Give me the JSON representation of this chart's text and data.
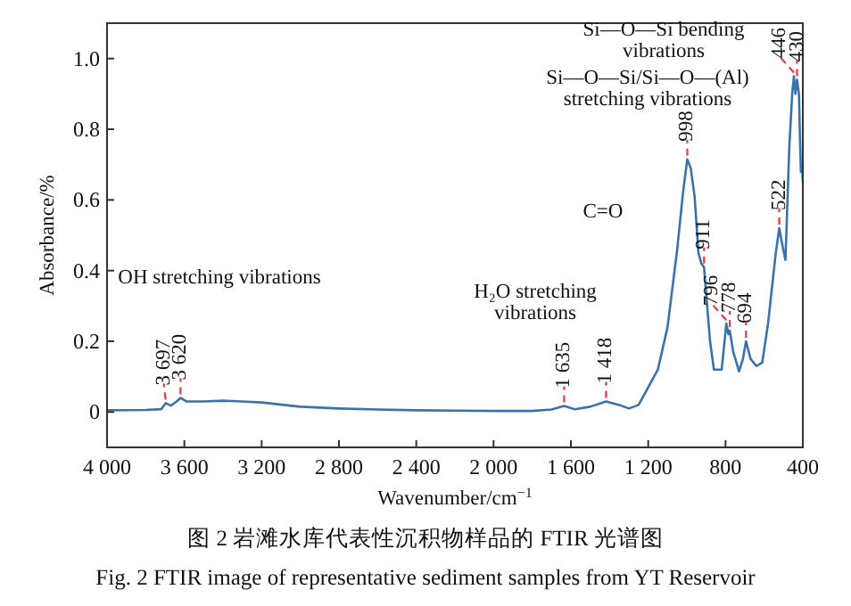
{
  "chart_data": {
    "type": "line",
    "title": "图 2 岩滩水库代表性沉积物样品的 FTIR 光谱图",
    "subtitle": "Fig. 2 FTIR image of representative sediment samples from YT Reservoir",
    "xlabel": "Wavenumber/cm$^{−1}$",
    "ylabel": "Absorbance/%",
    "x": [
      4000,
      3800,
      3720,
      3697,
      3670,
      3640,
      3620,
      3590,
      3500,
      3400,
      3300,
      3200,
      3000,
      2800,
      2600,
      2400,
      2200,
      2000,
      1800,
      1700,
      1635,
      1580,
      1500,
      1418,
      1350,
      1300,
      1250,
      1200,
      1150,
      1100,
      1050,
      1020,
      998,
      980,
      960,
      940,
      925,
      911,
      895,
      880,
      860,
      840,
      820,
      805,
      796,
      785,
      778,
      760,
      730,
      710,
      694,
      670,
      640,
      610,
      580,
      540,
      522,
      505,
      490,
      470,
      455,
      446,
      438,
      430,
      420,
      415,
      410,
      405,
      400
    ],
    "series": [
      {
        "color": "#3a72aa",
        "values": [
          0.005,
          0.006,
          0.008,
          0.025,
          0.018,
          0.03,
          0.04,
          0.03,
          0.03,
          0.032,
          0.03,
          0.027,
          0.015,
          0.01,
          0.007,
          0.005,
          0.004,
          0.003,
          0.003,
          0.007,
          0.017,
          0.008,
          0.015,
          0.03,
          0.02,
          0.01,
          0.02,
          0.07,
          0.12,
          0.24,
          0.46,
          0.62,
          0.715,
          0.69,
          0.61,
          0.45,
          0.42,
          0.41,
          0.3,
          0.2,
          0.12,
          0.12,
          0.12,
          0.2,
          0.25,
          0.22,
          0.23,
          0.17,
          0.115,
          0.15,
          0.2,
          0.15,
          0.13,
          0.14,
          0.25,
          0.45,
          0.52,
          0.47,
          0.43,
          0.75,
          0.9,
          0.95,
          0.9,
          0.94,
          0.9,
          0.78,
          0.68,
          0.7,
          0.65
        ]
      }
    ],
    "xlim": [
      4000,
      400
    ],
    "xticks": [
      {
        "value": 4000,
        "label": "4 000"
      },
      {
        "value": 3600,
        "label": "3 600"
      },
      {
        "value": 3200,
        "label": "3 200"
      },
      {
        "value": 2800,
        "label": "2 800"
      },
      {
        "value": 2400,
        "label": "2 400"
      },
      {
        "value": 2000,
        "label": "2 000"
      },
      {
        "value": 1600,
        "label": "1 600"
      },
      {
        "value": 1200,
        "label": "1 200"
      },
      800,
      400
    ],
    "ylim": [
      -0.1,
      1.1
    ],
    "yticks": [
      0,
      0.2,
      0.4,
      0.6,
      0.8,
      {
        "value": 1,
        "label": "1.0"
      }
    ],
    "annotations": [
      {
        "text": "3 697",
        "x": 3697,
        "y": 0.025
      },
      {
        "text": "3 620",
        "x": 3620,
        "y": 0.04
      },
      {
        "text": "1 635",
        "x": 1635,
        "y": 0.017
      },
      {
        "text": "1 418",
        "x": 1418,
        "y": 0.03
      },
      {
        "text": "998",
        "x": 998,
        "y": 0.715
      },
      {
        "text": "911",
        "x": 911,
        "y": 0.41
      },
      {
        "text": "796",
        "x": 796,
        "y": 0.25
      },
      {
        "text": "778",
        "x": 778,
        "y": 0.23
      },
      {
        "text": "694",
        "x": 694,
        "y": 0.2
      },
      {
        "text": "522",
        "x": 522,
        "y": 0.52
      },
      {
        "text": "446",
        "x": 446,
        "y": 0.95
      },
      {
        "text": "430",
        "x": 430,
        "y": 0.94
      },
      "OH stretching vibrations",
      "H₂O stretching vibrations",
      "C=O",
      "Si—O—Si/Si—O—(Al) stretching vibrations",
      "Si—O—Si bending vibrations"
    ]
  }
}
